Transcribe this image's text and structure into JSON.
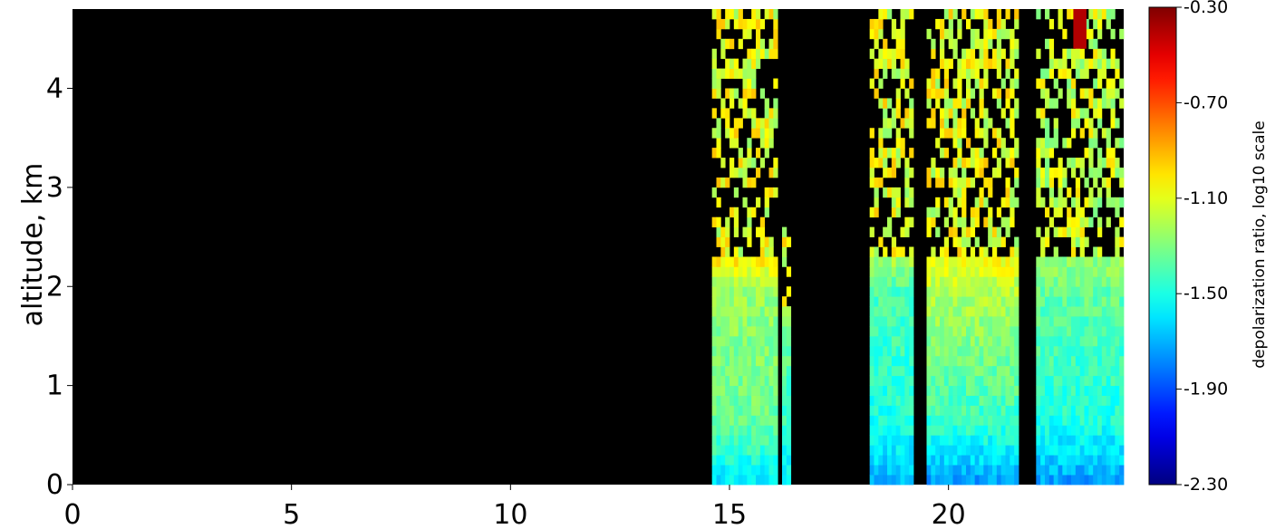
{
  "chart_data": {
    "type": "heatmap",
    "title": "",
    "xlabel": "",
    "ylabel": "altitude, km",
    "xlim": [
      0,
      24
    ],
    "ylim": [
      0,
      4.8
    ],
    "x_ticks": [
      0,
      5,
      10,
      15,
      20
    ],
    "y_ticks": [
      0,
      1,
      2,
      3,
      4
    ],
    "background_color": "#000000",
    "colormap": "jet",
    "colorbar": {
      "label": "depolarization ratio, log10 scale",
      "range": [
        -2.3,
        -0.3
      ],
      "tick_labels": [
        "-0.30",
        "-0.70",
        "-1.10",
        "-1.50",
        "-1.90",
        "-2.30"
      ],
      "tick_values": [
        -0.3,
        -0.7,
        -1.1,
        -1.5,
        -1.9,
        -2.3
      ]
    },
    "data_segments": [
      {
        "x_start": 14.6,
        "x_end": 16.1,
        "dense_top_km": 2.3,
        "top_band_value": -1.0,
        "upper_mid_value": -1.25,
        "lower_mid_value": -1.35,
        "near_surface_value": -1.6,
        "sparse_top_km": 4.8,
        "sparse_value": -1.1
      },
      {
        "x_start": 16.2,
        "x_end": 16.4,
        "dense_top_km": 1.8,
        "top_band_value": -1.2,
        "upper_mid_value": -1.35,
        "lower_mid_value": -1.45,
        "near_surface_value": -1.6,
        "sparse_top_km": 2.6,
        "sparse_value": -1.1
      },
      {
        "x_start": 18.2,
        "x_end": 19.2,
        "dense_top_km": 2.3,
        "top_band_value": -1.2,
        "upper_mid_value": -1.4,
        "lower_mid_value": -1.5,
        "near_surface_value": -1.7,
        "sparse_top_km": 4.8,
        "sparse_value": -1.1
      },
      {
        "x_start": 19.5,
        "x_end": 21.6,
        "dense_top_km": 2.3,
        "top_band_value": -1.05,
        "upper_mid_value": -1.2,
        "lower_mid_value": -1.45,
        "near_surface_value": -1.75,
        "sparse_top_km": 4.8,
        "sparse_value": -1.1
      },
      {
        "x_start": 22.0,
        "x_end": 24.0,
        "dense_top_km": 2.3,
        "top_band_value": -1.25,
        "upper_mid_value": -1.35,
        "lower_mid_value": -1.5,
        "near_surface_value": -1.75,
        "sparse_top_km": 4.8,
        "sparse_value": -1.15
      }
    ],
    "feature_peak": {
      "x": 23.0,
      "altitude_km_min": 4.4,
      "altitude_km_max": 4.8,
      "value": -0.4
    }
  }
}
